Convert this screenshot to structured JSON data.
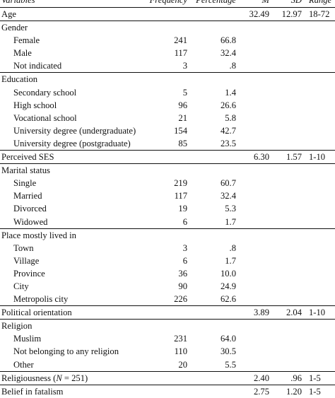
{
  "table": {
    "headers": {
      "variables": "Variables",
      "frequency": "Frequency",
      "percentage": "Percentage",
      "m": "M",
      "sd": "SD",
      "range": "Range"
    },
    "rows": [
      {
        "label": "Age",
        "sub": false,
        "freq": "",
        "pct": "",
        "m": "32.49",
        "sd": "12.97",
        "range": "18-72"
      },
      {
        "label": "Gender",
        "sub": false,
        "freq": "",
        "pct": "",
        "m": "",
        "sd": "",
        "range": ""
      },
      {
        "label": "Female",
        "sub": true,
        "freq": "241",
        "pct": "66.8",
        "m": "",
        "sd": "",
        "range": ""
      },
      {
        "label": "Male",
        "sub": true,
        "freq": "117",
        "pct": "32.4",
        "m": "",
        "sd": "",
        "range": ""
      },
      {
        "label": "Not indicated",
        "sub": true,
        "freq": "3",
        "pct": ".8",
        "m": "",
        "sd": "",
        "range": ""
      },
      {
        "label": "Education",
        "sub": false,
        "freq": "",
        "pct": "",
        "m": "",
        "sd": "",
        "range": ""
      },
      {
        "label": "Secondary school",
        "sub": true,
        "freq": "5",
        "pct": "1.4",
        "m": "",
        "sd": "",
        "range": ""
      },
      {
        "label": "High school",
        "sub": true,
        "freq": "96",
        "pct": "26.6",
        "m": "",
        "sd": "",
        "range": ""
      },
      {
        "label": "Vocational school",
        "sub": true,
        "freq": "21",
        "pct": "5.8",
        "m": "",
        "sd": "",
        "range": ""
      },
      {
        "label": "University degree (undergraduate)",
        "sub": true,
        "freq": "154",
        "pct": "42.7",
        "m": "",
        "sd": "",
        "range": ""
      },
      {
        "label": "University degree (postgraduate)",
        "sub": true,
        "freq": "85",
        "pct": "23.5",
        "m": "",
        "sd": "",
        "range": ""
      },
      {
        "label": "Perceived SES",
        "sub": false,
        "freq": "",
        "pct": "",
        "m": "6.30",
        "sd": "1.57",
        "range": "1-10"
      },
      {
        "label": "Marital status",
        "sub": false,
        "freq": "",
        "pct": "",
        "m": "",
        "sd": "",
        "range": ""
      },
      {
        "label": "Single",
        "sub": true,
        "freq": "219",
        "pct": "60.7",
        "m": "",
        "sd": "",
        "range": ""
      },
      {
        "label": "Married",
        "sub": true,
        "freq": "117",
        "pct": "32.4",
        "m": "",
        "sd": "",
        "range": ""
      },
      {
        "label": "Divorced",
        "sub": true,
        "freq": "19",
        "pct": "5.3",
        "m": "",
        "sd": "",
        "range": ""
      },
      {
        "label": "Widowed",
        "sub": true,
        "freq": "6",
        "pct": "1.7",
        "m": "",
        "sd": "",
        "range": ""
      },
      {
        "label": "Place mostly lived in",
        "sub": false,
        "freq": "",
        "pct": "",
        "m": "",
        "sd": "",
        "range": ""
      },
      {
        "label": "Town",
        "sub": true,
        "freq": "3",
        "pct": ".8",
        "m": "",
        "sd": "",
        "range": ""
      },
      {
        "label": "Village",
        "sub": true,
        "freq": "6",
        "pct": "1.7",
        "m": "",
        "sd": "",
        "range": ""
      },
      {
        "label": "Province",
        "sub": true,
        "freq": "36",
        "pct": "10.0",
        "m": "",
        "sd": "",
        "range": ""
      },
      {
        "label": "City",
        "sub": true,
        "freq": "90",
        "pct": "24.9",
        "m": "",
        "sd": "",
        "range": ""
      },
      {
        "label": "Metropolis city",
        "sub": true,
        "freq": "226",
        "pct": "62.6",
        "m": "",
        "sd": "",
        "range": ""
      },
      {
        "label": "Political orientation",
        "sub": false,
        "freq": "",
        "pct": "",
        "m": "3.89",
        "sd": "2.04",
        "range": "1-10"
      },
      {
        "label": "Religion",
        "sub": false,
        "freq": "",
        "pct": "",
        "m": "",
        "sd": "",
        "range": ""
      },
      {
        "label": "Muslim",
        "sub": true,
        "freq": "231",
        "pct": "64.0",
        "m": "",
        "sd": "",
        "range": ""
      },
      {
        "label": "Not belonging to any religion",
        "sub": true,
        "freq": "110",
        "pct": "30.5",
        "m": "",
        "sd": "",
        "range": ""
      },
      {
        "label": "Other",
        "sub": true,
        "freq": "20",
        "pct": "5.5",
        "m": "",
        "sd": "",
        "range": ""
      },
      {
        "label": "Religiousness (N = 251)",
        "sub": false,
        "freq": "",
        "pct": "",
        "m": "2.40",
        "sd": ".96",
        "range": "1-5"
      },
      {
        "label": "Belief in fatalism",
        "sub": false,
        "freq": "",
        "pct": "",
        "m": "2.75",
        "sd": "1.20",
        "range": "1-5"
      }
    ]
  }
}
